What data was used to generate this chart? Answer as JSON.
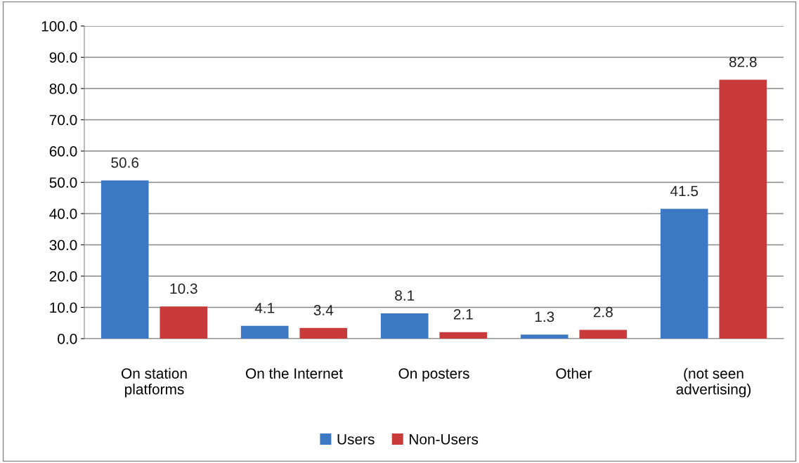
{
  "chart_data": {
    "type": "bar",
    "categories": [
      "On station\nplatforms",
      "On the Internet",
      "On posters",
      "Other",
      "(not seen\nadvertising)"
    ],
    "series": [
      {
        "name": "Users",
        "color": "#3d78c4",
        "values": [
          50.6,
          4.1,
          8.1,
          1.3,
          41.5
        ]
      },
      {
        "name": "Non-Users",
        "color": "#c93a3a",
        "values": [
          10.3,
          3.4,
          2.1,
          2.8,
          82.8
        ]
      }
    ],
    "ylim": [
      0,
      100
    ],
    "yticks": [
      {
        "value": 0,
        "label": "0.0"
      },
      {
        "value": 10,
        "label": "10.0"
      },
      {
        "value": 20,
        "label": "20.0"
      },
      {
        "value": 30,
        "label": "30.0"
      },
      {
        "value": 40,
        "label": "40.0"
      },
      {
        "value": 50,
        "label": "50.0"
      },
      {
        "value": 60,
        "label": "60.0"
      },
      {
        "value": 70,
        "label": "70.0"
      },
      {
        "value": 80,
        "label": "80.0"
      },
      {
        "value": 90,
        "label": "90.0"
      },
      {
        "value": 100,
        "label": "100.0"
      }
    ],
    "grid": "y",
    "legend": "bottom",
    "data_labels": true
  }
}
